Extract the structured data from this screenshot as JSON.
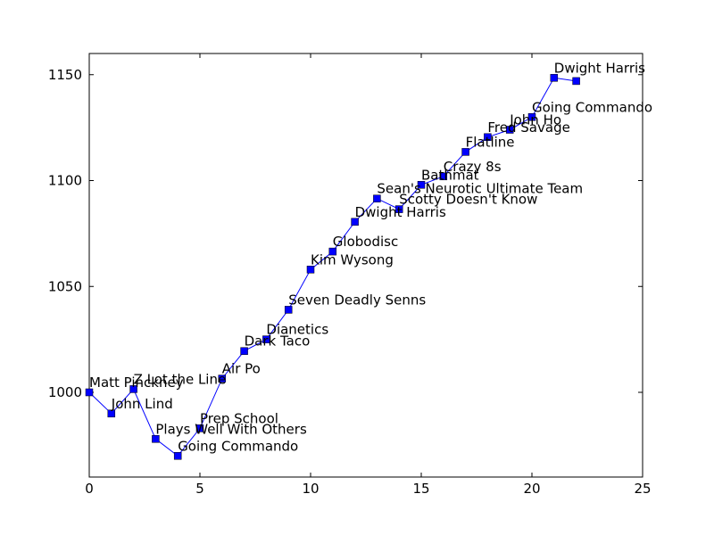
{
  "chart_data": {
    "type": "line",
    "title": "",
    "xlabel": "",
    "ylabel": "",
    "xlim": [
      0,
      25
    ],
    "ylim": [
      960,
      1160
    ],
    "xticks": [
      0,
      5,
      10,
      15,
      20,
      25
    ],
    "yticks": [
      1000,
      1050,
      1100,
      1150
    ],
    "grid": false,
    "colors": {
      "line": "#0000ff",
      "marker": "#0000ff",
      "marker_edge": "#000000",
      "axes": "#000000"
    },
    "series": [
      {
        "x": [
          0,
          1,
          2,
          3,
          4,
          5,
          6,
          7,
          8,
          9,
          10,
          11,
          12,
          13,
          14,
          15,
          16,
          17,
          18,
          19,
          20,
          21,
          22
        ],
        "y": [
          1000,
          990,
          1001.5,
          978,
          970,
          983,
          1006.5,
          1019.5,
          1025,
          1039,
          1058,
          1066.5,
          1080.5,
          1091.5,
          1086.5,
          1098,
          1102,
          1113.5,
          1120.5,
          1124,
          1130,
          1148.5,
          1147
        ],
        "labels": [
          "Matt Pinckney",
          "John Lind",
          "Z Lot the Line",
          "Plays Well With Others",
          "Going Commando",
          "Prep School",
          "Air Po",
          "Dark Taco",
          "Dianetics",
          "Seven Deadly Senns",
          "Kim Wysong",
          "Globodisc",
          "Dwight Harris",
          "Sean's Neurotic Ultimate Team",
          "Scotty Doesn't Know",
          "Bathmat",
          "Crazy 8s",
          "Flatline",
          "Fred Savage",
          "John Ho",
          "Going Commando",
          "Dwight Harris",
          ""
        ]
      }
    ]
  }
}
